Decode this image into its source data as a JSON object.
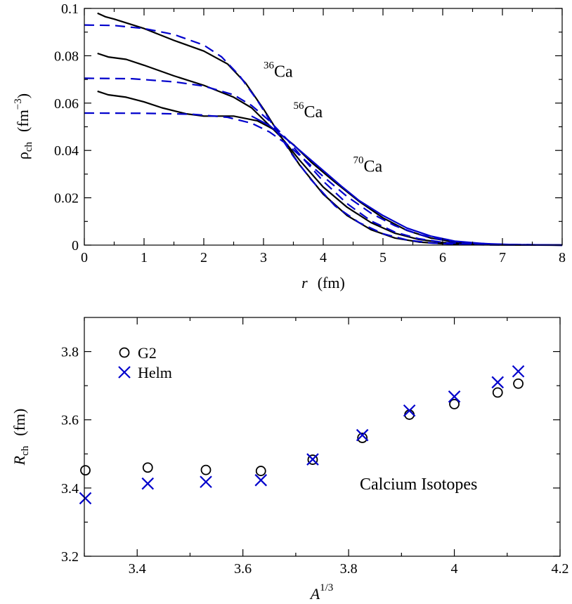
{
  "chart_data": [
    {
      "type": "line",
      "title": "",
      "xlabel": "r",
      "xlabel_unit": "(fm)",
      "ylabel_symbol": "ρ",
      "ylabel_sub": "ch",
      "ylabel_unit_open": "(fm",
      "ylabel_unit_exp": "−3",
      "ylabel_unit_close": ")",
      "xlim": [
        0,
        8
      ],
      "ylim": [
        0,
        0.1
      ],
      "xticks": [
        "0",
        "1",
        "2",
        "3",
        "4",
        "5",
        "6",
        "7",
        "8"
      ],
      "yticks": [
        "0",
        "0.02",
        "0.04",
        "0.06",
        "0.08",
        "0.1"
      ],
      "grid": false,
      "annotations": [
        {
          "mass": "36",
          "element": "Ca",
          "x": 3.0,
          "y": 0.071
        },
        {
          "mass": "56",
          "element": "Ca",
          "x": 3.5,
          "y": 0.054
        },
        {
          "mass": "70",
          "element": "Ca",
          "x": 4.5,
          "y": 0.031
        }
      ],
      "series": [
        {
          "nucleus": "36Ca",
          "style": "solid",
          "color": "#000000",
          "x": [
            0.22,
            0.35,
            0.5,
            1.0,
            1.5,
            2.0,
            2.4,
            2.7,
            3.0,
            3.3,
            3.6,
            4.0,
            4.4,
            4.8,
            5.2,
            5.6,
            6.0,
            6.5,
            7.0,
            8.0
          ],
          "y": [
            0.098,
            0.0965,
            0.0955,
            0.0915,
            0.0865,
            0.082,
            0.0765,
            0.0685,
            0.0575,
            0.0455,
            0.034,
            0.0215,
            0.0125,
            0.0065,
            0.003,
            0.0013,
            0.0006,
            0.0002,
            0.0001,
            0.0
          ]
        },
        {
          "nucleus": "56Ca",
          "style": "solid",
          "color": "#000000",
          "x": [
            0.22,
            0.4,
            0.7,
            1.0,
            1.5,
            2.0,
            2.5,
            2.8,
            3.0,
            3.3,
            3.6,
            4.0,
            4.4,
            4.8,
            5.2,
            5.6,
            6.0,
            6.5,
            7.0,
            8.0
          ],
          "y": [
            0.081,
            0.0795,
            0.0785,
            0.076,
            0.0715,
            0.0675,
            0.0625,
            0.058,
            0.053,
            0.0455,
            0.036,
            0.0245,
            0.016,
            0.0095,
            0.005,
            0.0024,
            0.0011,
            0.0004,
            0.0001,
            0.0
          ]
        },
        {
          "nucleus": "70Ca",
          "style": "solid",
          "color": "#000000",
          "x": [
            0.22,
            0.4,
            0.7,
            1.0,
            1.3,
            1.7,
            2.0,
            2.5,
            2.9,
            3.2,
            3.5,
            3.8,
            4.2,
            4.6,
            5.0,
            5.4,
            5.8,
            6.2,
            6.7,
            7.2,
            8.0
          ],
          "y": [
            0.065,
            0.0635,
            0.0625,
            0.0605,
            0.058,
            0.0555,
            0.0545,
            0.0545,
            0.0525,
            0.0485,
            0.0425,
            0.035,
            0.0265,
            0.0185,
            0.0115,
            0.0062,
            0.003,
            0.0013,
            0.0004,
            0.0001,
            0.0
          ]
        },
        {
          "nucleus": "36Ca Helm",
          "style": "dashed",
          "color": "#0000cc",
          "x": [
            0.0,
            0.5,
            1.0,
            1.5,
            2.0,
            2.3,
            2.6,
            2.9,
            3.2,
            3.5,
            3.8,
            4.2,
            4.6,
            5.0,
            5.4,
            5.8,
            6.2,
            6.8,
            8.0
          ],
          "y": [
            0.093,
            0.0928,
            0.0915,
            0.089,
            0.0845,
            0.0795,
            0.0715,
            0.061,
            0.049,
            0.0375,
            0.0275,
            0.0165,
            0.0095,
            0.0048,
            0.0022,
            0.0009,
            0.0004,
            0.0001,
            0.0
          ]
        },
        {
          "nucleus": "56Ca Helm",
          "style": "dashed",
          "color": "#0000cc",
          "x": [
            0.0,
            0.8,
            1.5,
            2.0,
            2.5,
            2.8,
            3.1,
            3.4,
            3.7,
            4.0,
            4.4,
            4.8,
            5.2,
            5.6,
            6.0,
            6.5,
            8.0
          ],
          "y": [
            0.0705,
            0.0703,
            0.069,
            0.0672,
            0.0635,
            0.059,
            0.0525,
            0.0445,
            0.0355,
            0.027,
            0.0175,
            0.0102,
            0.0055,
            0.0027,
            0.0012,
            0.0004,
            0.0
          ]
        },
        {
          "nucleus": "70Ca Helm",
          "style": "dashed",
          "color": "#0000cc",
          "x": [
            0.0,
            1.0,
            1.8,
            2.4,
            2.8,
            3.1,
            3.4,
            3.7,
            4.0,
            4.4,
            4.8,
            5.2,
            5.6,
            6.0,
            6.4,
            7.0,
            8.0
          ],
          "y": [
            0.0558,
            0.0557,
            0.0553,
            0.054,
            0.0515,
            0.0478,
            0.0425,
            0.0358,
            0.029,
            0.0205,
            0.0135,
            0.0082,
            0.0045,
            0.0022,
            0.001,
            0.0003,
            0.0
          ]
        },
        {
          "nucleus": "70Ca Helm solid",
          "style": "solid",
          "color": "#0000cc",
          "x": [
            2.8,
            3.1,
            3.4,
            3.7,
            4.0,
            4.3,
            4.6,
            5.0,
            5.4,
            5.8,
            6.2,
            6.7,
            7.2,
            8.0
          ],
          "y": [
            0.0545,
            0.0505,
            0.0445,
            0.038,
            0.0315,
            0.025,
            0.0188,
            0.0125,
            0.0072,
            0.0038,
            0.0017,
            0.0006,
            0.0002,
            0.0
          ]
        }
      ]
    },
    {
      "type": "scatter",
      "title": "",
      "xlabel_symbol": "A",
      "xlabel_exp": "1/3",
      "ylabel_symbol": "R",
      "ylabel_sub": "ch",
      "ylabel_unit": "(fm)",
      "xlim": [
        3.3,
        4.2
      ],
      "ylim": [
        3.2,
        3.9
      ],
      "xticks": [
        "3.4",
        "3.6",
        "3.8",
        "4",
        "4.2"
      ],
      "yticks": [
        "3.2",
        "3.4",
        "3.6",
        "3.8"
      ],
      "grid": false,
      "legend_position": "top-left",
      "annotation": "Calcium Isotopes",
      "series": [
        {
          "name": "G2",
          "marker": "circle",
          "color": "#000000",
          "x": [
            3.302,
            3.42,
            3.53,
            3.634,
            3.732,
            3.826,
            3.915,
            4.0,
            4.082,
            4.121
          ],
          "y": [
            3.452,
            3.46,
            3.453,
            3.45,
            3.483,
            3.547,
            3.615,
            3.646,
            3.68,
            3.706
          ]
        },
        {
          "name": "Helm",
          "marker": "x",
          "color": "#0000cc",
          "x": [
            3.302,
            3.42,
            3.53,
            3.634,
            3.732,
            3.826,
            3.915,
            4.0,
            4.082,
            4.121
          ],
          "y": [
            3.37,
            3.413,
            3.418,
            3.423,
            3.484,
            3.555,
            3.627,
            3.668,
            3.71,
            3.742
          ]
        }
      ]
    }
  ]
}
